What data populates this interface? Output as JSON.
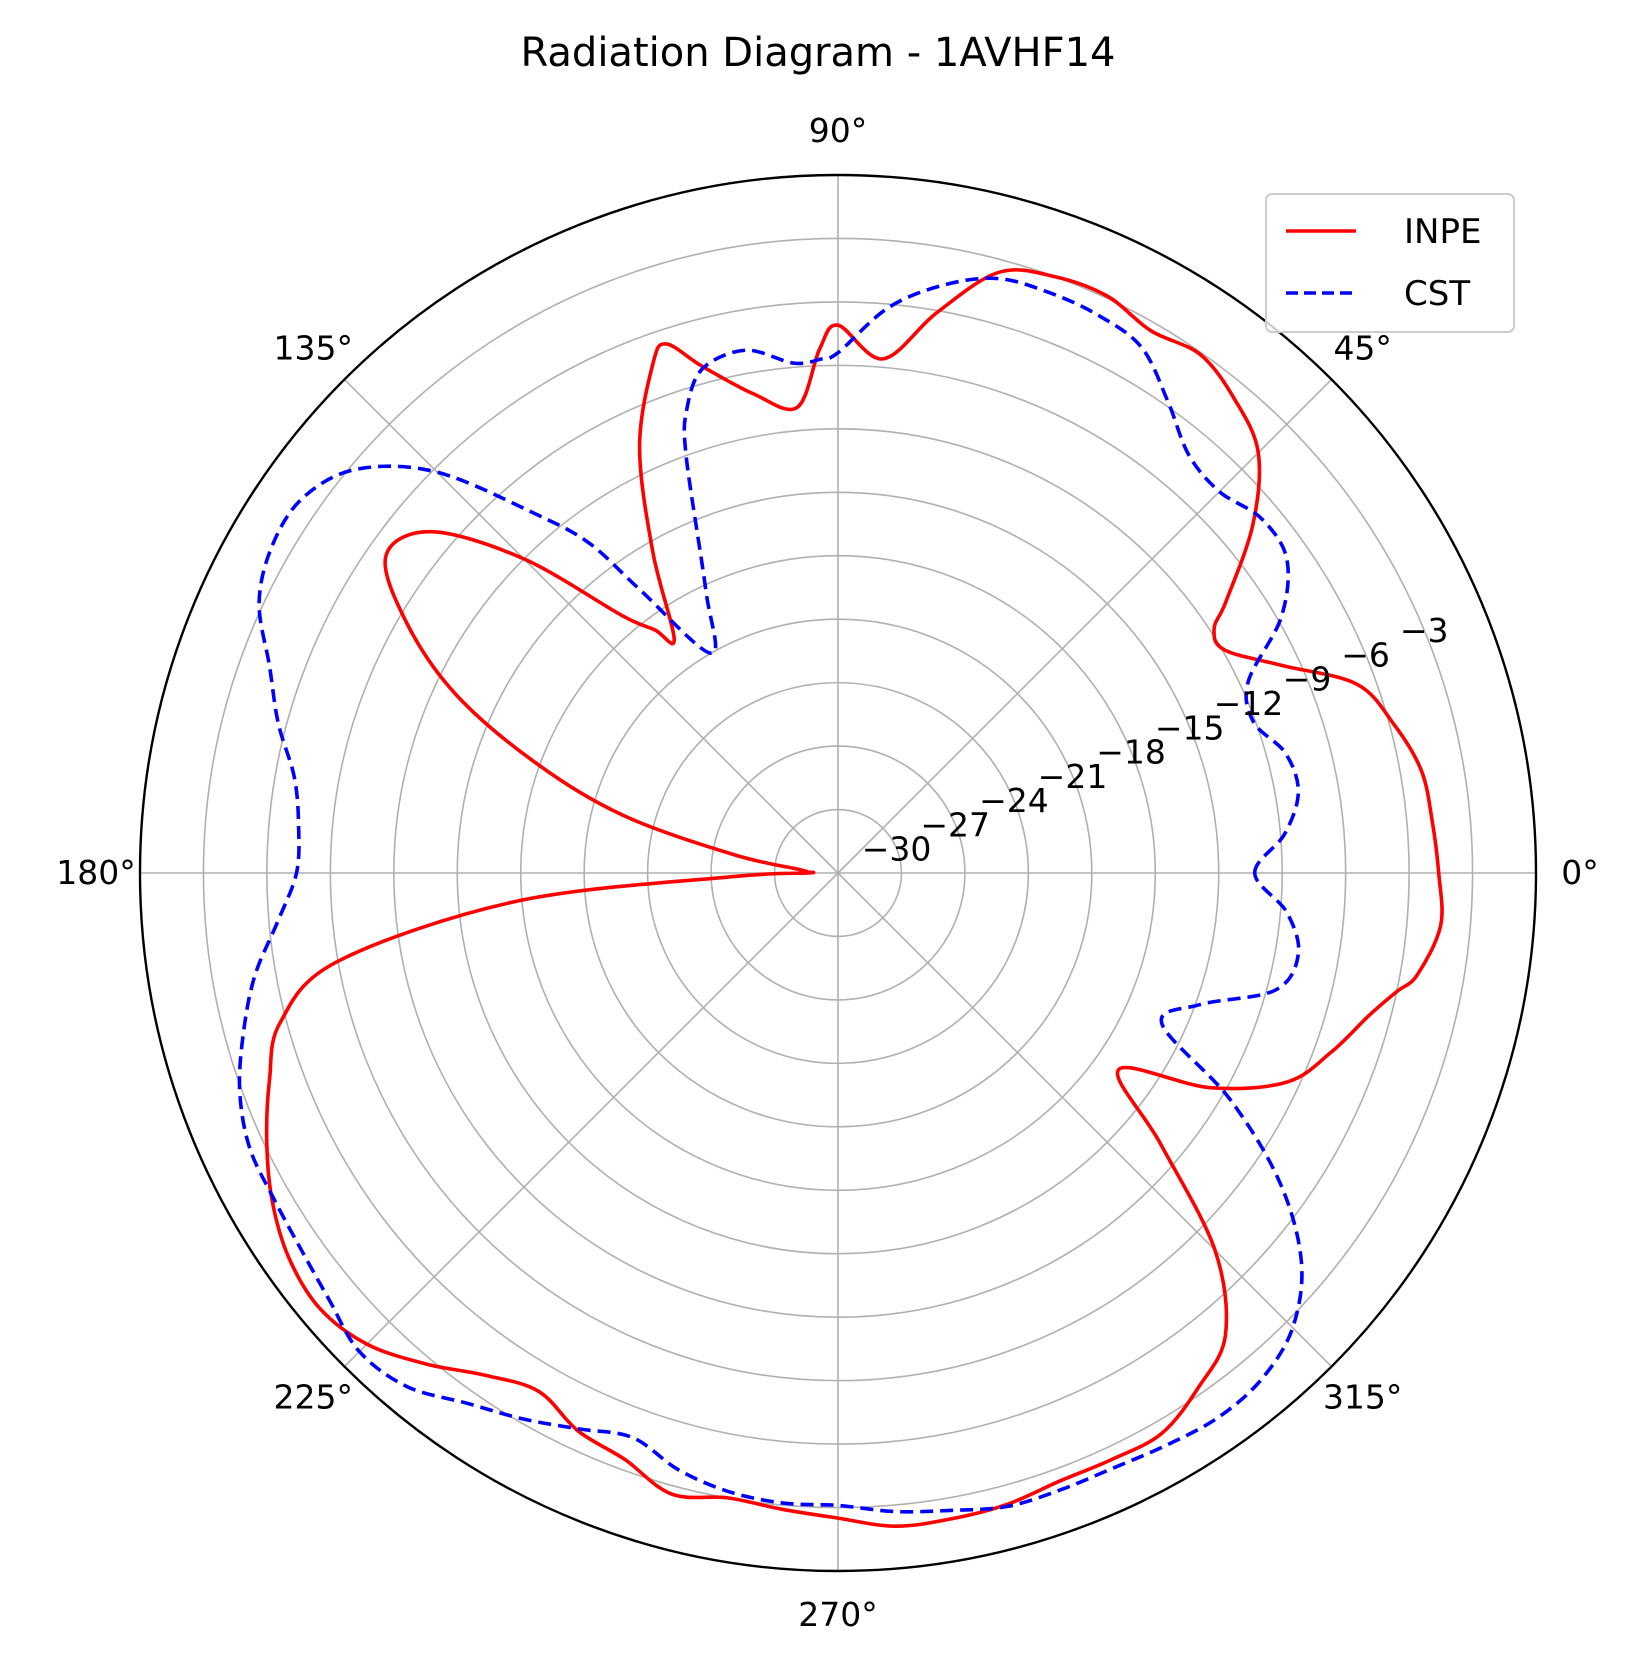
{
  "chart_data": {
    "type": "line",
    "subtype": "polar",
    "title": "Radiation Diagram - 1AVHF14",
    "angle_unit": "deg",
    "radial_range": [
      -33,
      0
    ],
    "radial_ticks": [
      -30,
      -27,
      -24,
      -21,
      -18,
      -15,
      -12,
      -9,
      -6,
      -3
    ],
    "radial_tick_labels": [
      "−30",
      "−27",
      "−24",
      "−21",
      "−18",
      "−15",
      "−12",
      "−9",
      "−6",
      "−3"
    ],
    "angular_ticks": [
      0,
      45,
      90,
      135,
      180,
      225,
      270,
      315
    ],
    "angular_tick_labels": [
      "0°",
      "45°",
      "90°",
      "135°",
      "180°",
      "225°",
      "270°",
      "315°"
    ],
    "grid": true,
    "legend_position": "top-right",
    "series": [
      {
        "name": "INPE",
        "color": "#ff0000",
        "style": "solid",
        "theta": [
          0,
          5,
          10,
          15,
          20,
          25,
          30,
          33,
          35,
          40,
          45,
          50,
          55,
          60,
          65,
          70,
          75,
          80,
          85,
          90,
          92,
          95,
          100,
          105,
          108,
          110,
          115,
          120,
          125,
          127,
          130,
          135,
          140,
          145,
          150,
          155,
          160,
          165,
          170,
          175,
          178,
          180,
          182,
          185,
          190,
          195,
          200,
          205,
          210,
          215,
          220,
          225,
          230,
          235,
          240,
          245,
          250,
          255,
          260,
          265,
          270,
          275,
          280,
          285,
          290,
          295,
          300,
          305,
          310,
          315,
          320,
          325,
          330,
          335,
          340,
          345,
          348,
          350,
          355
        ],
        "r": [
          -4.6,
          -4.8,
          -5.0,
          -5.8,
          -6.9,
          -9.8,
          -11.9,
          -11.8,
          -10.6,
          -7.4,
          -4.9,
          -3.8,
          -3.1,
          -3.4,
          -2.9,
          -3.0,
          -3.6,
          -6.1,
          -8.6,
          -7.1,
          -8.2,
          -10.9,
          -10.0,
          -8.2,
          -6.7,
          -7.4,
          -10.8,
          -15.5,
          -19.5,
          -18.6,
          -17.1,
          -12.0,
          -7.9,
          -6.9,
          -9.5,
          -13.1,
          -17.8,
          -22.5,
          -28.0,
          -31.2,
          -31.5,
          -31.6,
          -28.0,
          -17.8,
          -9.0,
          -5.7,
          -4.4,
          -3.2,
          -2.1,
          -1.3,
          -1.0,
          -1.5,
          -2.7,
          -4.0,
          -4.7,
          -3.9,
          -3.5,
          -2.6,
          -3.0,
          -2.8,
          -2.5,
          -2.0,
          -2.0,
          -2.1,
          -2.4,
          -2.4,
          -2.4,
          -3.3,
          -4.5,
          -7.8,
          -13.1,
          -16.8,
          -12.7,
          -9.6,
          -8.2,
          -7.0,
          -6.0,
          -5.2,
          -4.4
        ]
      },
      {
        "name": "CST",
        "color": "#0000ff",
        "style": "dashed",
        "theta": [
          0,
          5,
          10,
          15,
          20,
          25,
          30,
          35,
          40,
          45,
          50,
          55,
          60,
          65,
          70,
          75,
          80,
          85,
          90,
          92,
          95,
          100,
          105,
          108,
          110,
          115,
          120,
          125,
          127,
          130,
          135,
          140,
          145,
          150,
          155,
          160,
          165,
          170,
          175,
          180,
          185,
          190,
          195,
          200,
          205,
          210,
          215,
          220,
          225,
          230,
          235,
          240,
          245,
          250,
          255,
          260,
          265,
          270,
          275,
          280,
          285,
          290,
          295,
          300,
          305,
          310,
          315,
          320,
          325,
          330,
          335,
          340,
          345,
          350,
          355
        ],
        "r": [
          -13.3,
          -11.8,
          -10.9,
          -11.1,
          -12.1,
          -11.6,
          -8.8,
          -7.1,
          -6.9,
          -7.5,
          -7.2,
          -5.8,
          -4.3,
          -3.9,
          -3.8,
          -3.9,
          -4.8,
          -6.2,
          -8.4,
          -8.7,
          -8.8,
          -7.9,
          -8.3,
          -9.9,
          -12.0,
          -18.2,
          -21.0,
          -16.6,
          -13.5,
          -10.9,
          -6.2,
          -3.3,
          -2.1,
          -2.1,
          -2.8,
          -4.4,
          -5.6,
          -6.9,
          -7.4,
          -7.4,
          -6.4,
          -5.0,
          -3.9,
          -2.9,
          -2.3,
          -2.2,
          -2.0,
          -1.6,
          -1.0,
          -1.3,
          -2.4,
          -3.2,
          -4.0,
          -4.6,
          -3.8,
          -3.3,
          -3.1,
          -3.1,
          -2.7,
          -2.4,
          -2.0,
          -2.0,
          -2.0,
          -1.8,
          -1.6,
          -1.8,
          -2.6,
          -4.4,
          -7.5,
          -11.6,
          -16.1,
          -14.8,
          -11.6,
          -10.9,
          -11.7
        ]
      }
    ]
  }
}
